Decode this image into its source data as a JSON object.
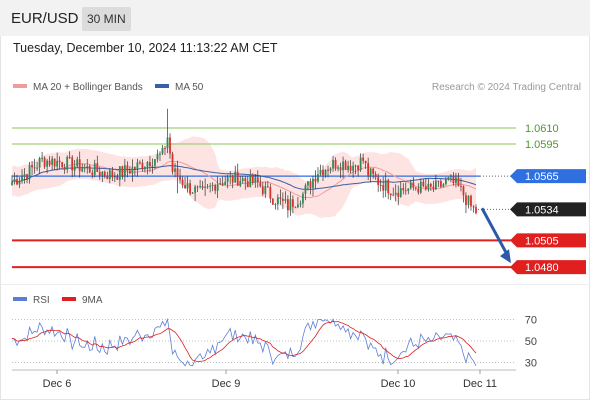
{
  "header": {
    "symbol": "EUR/USD",
    "timeframe": "30 MIN",
    "datetime": "Tuesday, December 10, 2024 11:13:22 AM CET"
  },
  "legend": {
    "ma20_label": "MA 20 + Bollinger Bands",
    "ma50_label": "MA 50",
    "credit": "Research © 2024 Trading Central",
    "rsi_label": "RSI",
    "rsi_ma_label": "9MA"
  },
  "colors": {
    "ma20": "#f29b9b",
    "ma50": "#3a5fa8",
    "bollinger_fill": "#fde4e2",
    "bullish": "#2e8b57",
    "bearish": "#d9322d",
    "candle_wick": "#333333",
    "resistance": "#8cc65a",
    "pivot": "#2f6fe0",
    "support": "#e01f1f",
    "arrow": "#2c5aa8",
    "rsi": "#5b7fd6",
    "rsi_ma": "#e01f1f"
  },
  "chart_data": [
    {
      "type": "candlestick",
      "title": "EUR/USD",
      "timeframe": "30 MIN",
      "x_ticks": [
        "Dec 6",
        "Dec 9",
        "Dec 10",
        "Dec 11"
      ],
      "ylim": [
        1.0468,
        1.0638
      ],
      "levels": [
        {
          "label": "1.0610",
          "value": 1.061,
          "kind": "resistance"
        },
        {
          "label": "1.0595",
          "value": 1.0595,
          "kind": "resistance"
        },
        {
          "label": "1.0565",
          "value": 1.0565,
          "kind": "pivot"
        },
        {
          "label": "1.0534",
          "value": 1.0534,
          "kind": "last-price"
        },
        {
          "label": "1.0505",
          "value": 1.0505,
          "kind": "support"
        },
        {
          "label": "1.0480",
          "value": 1.048,
          "kind": "support"
        }
      ],
      "projection": {
        "from": 1.0535,
        "to": 1.048
      },
      "anchors": [
        [
          0,
          1.056
        ],
        [
          6,
          1.0568
        ],
        [
          12,
          1.058
        ],
        [
          20,
          1.0578
        ],
        [
          30,
          1.0572
        ],
        [
          40,
          1.0566
        ],
        [
          48,
          1.0572
        ],
        [
          55,
          1.058
        ],
        [
          60,
          1.0585
        ],
        [
          62,
          1.0602
        ],
        [
          64,
          1.057
        ],
        [
          70,
          1.0555
        ],
        [
          76,
          1.0548
        ],
        [
          82,
          1.056
        ],
        [
          90,
          1.0563
        ],
        [
          98,
          1.0558
        ],
        [
          104,
          1.0545
        ],
        [
          110,
          1.0537
        ],
        [
          116,
          1.0548
        ],
        [
          122,
          1.057
        ],
        [
          130,
          1.0578
        ],
        [
          136,
          1.0575
        ],
        [
          140,
          1.058
        ],
        [
          142,
          1.0568
        ],
        [
          146,
          1.056
        ],
        [
          152,
          1.0552
        ],
        [
          158,
          1.0553
        ],
        [
          162,
          1.0555
        ],
        [
          166,
          1.0552
        ],
        [
          170,
          1.0555
        ],
        [
          174,
          1.056
        ],
        [
          177,
          1.0557
        ],
        [
          180,
          1.0548
        ],
        [
          183,
          1.0536
        ],
        [
          185,
          1.0532
        ]
      ]
    },
    {
      "type": "line",
      "title": "RSI",
      "series": [
        {
          "name": "RSI"
        },
        {
          "name": "9MA"
        }
      ],
      "yticks": [
        70,
        50,
        30
      ],
      "ylim": [
        25,
        75
      ]
    }
  ]
}
